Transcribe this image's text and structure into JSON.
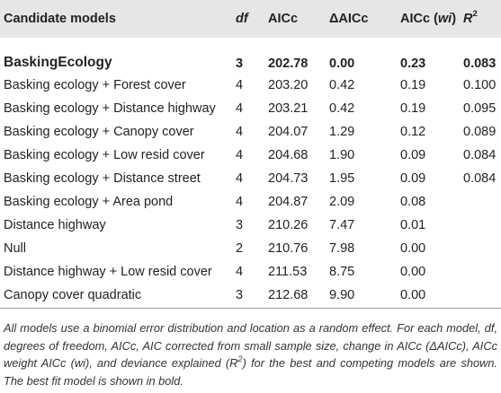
{
  "columns": {
    "model": "Candidate models",
    "df": "df",
    "aicc": "AICc",
    "daicc": "ΔAICc",
    "wi_prefix": "AICc (",
    "wi_var": "wi",
    "wi_suffix": ")",
    "r2_base": "R",
    "r2_sup": "2"
  },
  "rows": [
    {
      "model": "BaskingEcology",
      "df": "3",
      "aicc": "202.78",
      "daicc": "0.00",
      "wi": "0.23",
      "r2": "0.083",
      "bold": true
    },
    {
      "model": "Basking ecology + Forest cover",
      "df": "4",
      "aicc": "203.20",
      "daicc": "0.42",
      "wi": "0.19",
      "r2": "0.100"
    },
    {
      "model": "Basking ecology + Distance highway",
      "df": "4",
      "aicc": "203.21",
      "daicc": "0.42",
      "wi": "0.19",
      "r2": "0.095"
    },
    {
      "model": "Basking ecology + Canopy cover",
      "df": "4",
      "aicc": "204.07",
      "daicc": "1.29",
      "wi": "0.12",
      "r2": "0.089"
    },
    {
      "model": "Basking ecology + Low resid cover",
      "df": "4",
      "aicc": "204.68",
      "daicc": "1.90",
      "wi": "0.09",
      "r2": "0.084"
    },
    {
      "model": "Basking ecology + Distance street",
      "df": "4",
      "aicc": "204.73",
      "daicc": "1.95",
      "wi": "0.09",
      "r2": "0.084"
    },
    {
      "model": "Basking ecology + Area pond",
      "df": "4",
      "aicc": "204.87",
      "daicc": "2.09",
      "wi": "0.08",
      "r2": ""
    },
    {
      "model": "Distance highway",
      "df": "3",
      "aicc": "210.26",
      "daicc": "7.47",
      "wi": "0.01",
      "r2": ""
    },
    {
      "model": "Null",
      "df": "2",
      "aicc": "210.76",
      "daicc": "7.98",
      "wi": "0.00",
      "r2": ""
    },
    {
      "model": "Distance highway + Low resid cover",
      "df": "4",
      "aicc": "211.53",
      "daicc": "8.75",
      "wi": "0.00",
      "r2": ""
    },
    {
      "model": "Canopy cover quadratic",
      "df": "3",
      "aicc": "212.68",
      "daicc": "9.90",
      "wi": "0.00",
      "r2": ""
    }
  ],
  "footnote": {
    "p1": "All models use a binomial error distribution and location as a random effect. For each model, df, degrees of freedom, AICc, AIC corrected from small sample size, change in AICc (ΔAICc), AICc weight AICc (wi), and deviance explained (R",
    "sup": "2",
    "p2": ") for the best and competing models are shown. The best fit model is shown in bold."
  }
}
